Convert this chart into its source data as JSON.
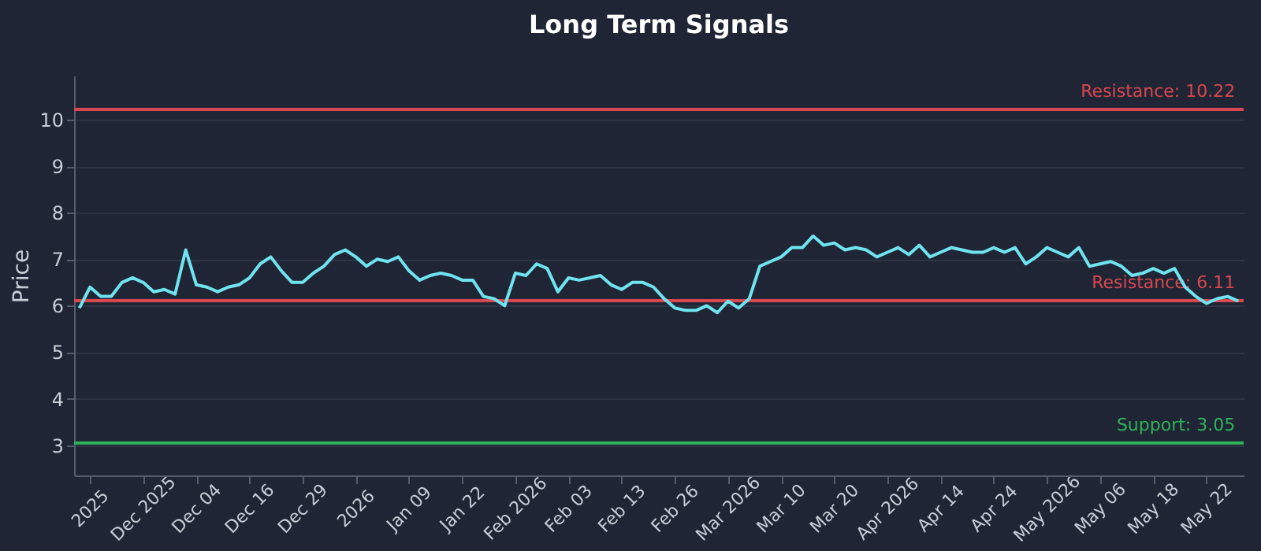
{
  "chart_data": {
    "type": "line",
    "title": "Long Term Signals",
    "ylabel": "Price",
    "categories": [
      null,
      "2025",
      null,
      null,
      null,
      null,
      "Dec 2025",
      null,
      null,
      null,
      null,
      "Dec 04",
      null,
      null,
      null,
      null,
      "Dec 16",
      null,
      null,
      null,
      null,
      "Dec 29",
      null,
      null,
      null,
      null,
      "2026",
      null,
      null,
      null,
      null,
      "Jan 09",
      null,
      null,
      null,
      null,
      "Jan 22",
      null,
      null,
      null,
      null,
      "Feb 2026",
      null,
      null,
      null,
      null,
      "Feb 03",
      null,
      null,
      null,
      null,
      "Feb 13",
      null,
      null,
      null,
      null,
      "Feb 26",
      null,
      null,
      null,
      null,
      "Mar 2026",
      null,
      null,
      null,
      null,
      "Mar 10",
      null,
      null,
      null,
      null,
      "Mar 20",
      null,
      null,
      null,
      null,
      "Apr 2026",
      null,
      null,
      null,
      null,
      "Apr 14",
      null,
      null,
      null,
      null,
      "Apr 24",
      null,
      null,
      null,
      null,
      "May 2026",
      null,
      null,
      null,
      null,
      "May 06",
      null,
      null,
      null,
      null,
      "May 18",
      null,
      null,
      null,
      null,
      "May 22",
      null,
      null,
      null
    ],
    "series": [
      {
        "color": "#6fe3ef",
        "values": [
          5.95,
          6.4,
          6.2,
          6.2,
          6.5,
          6.6,
          6.5,
          6.3,
          6.35,
          6.25,
          7.2,
          6.45,
          6.4,
          6.3,
          6.4,
          6.45,
          6.6,
          6.9,
          7.05,
          6.75,
          6.5,
          6.5,
          6.7,
          6.85,
          7.1,
          7.2,
          7.05,
          6.85,
          7.0,
          6.95,
          7.05,
          6.75,
          6.55,
          6.65,
          6.7,
          6.65,
          6.55,
          6.55,
          6.2,
          6.15,
          6.0,
          6.7,
          6.65,
          6.9,
          6.8,
          6.3,
          6.6,
          6.55,
          6.6,
          6.65,
          6.45,
          6.35,
          6.5,
          6.5,
          6.4,
          6.15,
          5.95,
          5.9,
          5.9,
          6.0,
          5.85,
          6.1,
          5.95,
          6.15,
          6.85,
          6.95,
          7.05,
          7.25,
          7.25,
          7.5,
          7.3,
          7.35,
          7.2,
          7.25,
          7.2,
          7.05,
          7.15,
          7.25,
          7.1,
          7.3,
          7.05,
          7.15,
          7.25,
          7.2,
          7.15,
          7.15,
          7.25,
          7.15,
          7.25,
          6.9,
          7.05,
          7.25,
          7.15,
          7.05,
          7.25,
          6.85,
          6.9,
          6.95,
          6.85,
          6.65,
          6.7,
          6.8,
          6.7,
          6.8,
          6.4,
          6.2,
          6.05,
          6.15,
          6.2,
          6.1
        ]
      }
    ],
    "ylim": [
      2.35,
      10.95
    ],
    "yticks": [
      3,
      4,
      5,
      6,
      7,
      8,
      9,
      10
    ],
    "grid": "y",
    "ref_lines": [
      {
        "axis": "y",
        "value": 10.22,
        "label": "Resistance: 10.22",
        "color": "#d9474f"
      },
      {
        "axis": "y",
        "value": 6.11,
        "label": "Resistance: 6.11",
        "color": "#d9474f"
      },
      {
        "axis": "y",
        "value": 3.05,
        "label": "Support: 3.05",
        "color": "#2fb35a"
      }
    ]
  }
}
